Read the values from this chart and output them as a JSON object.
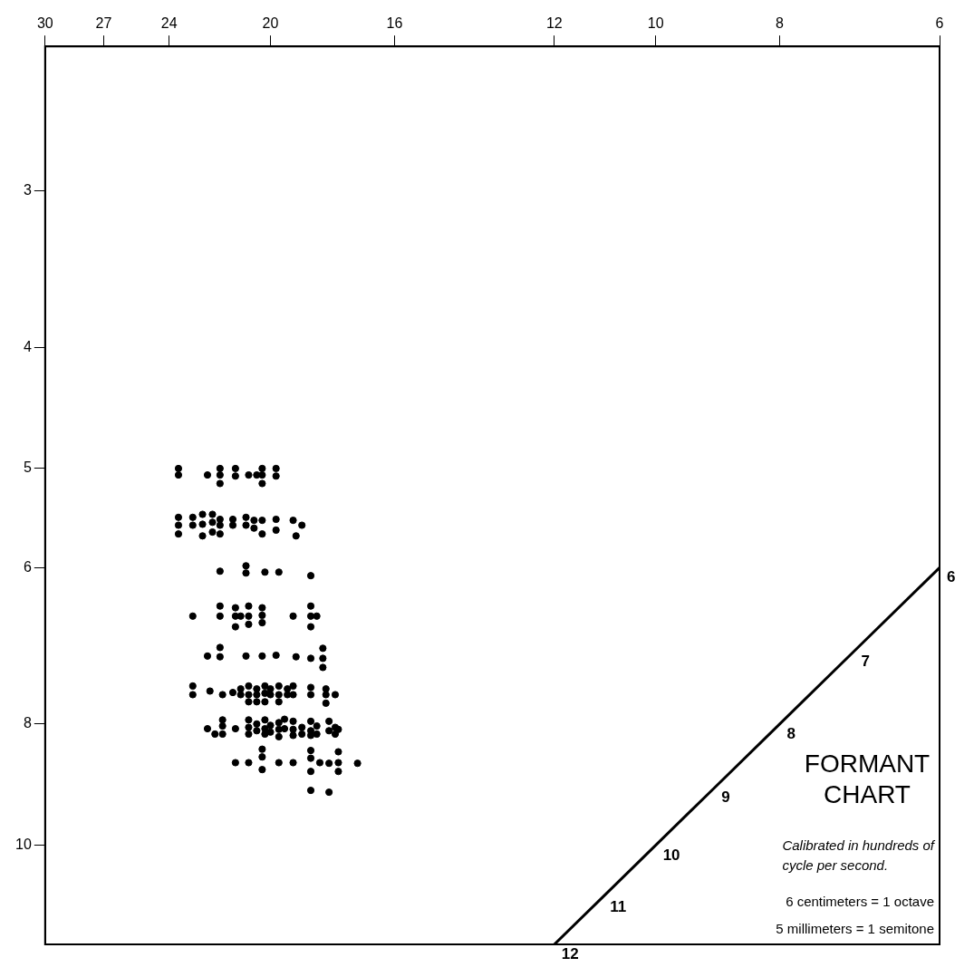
{
  "chart_data": {
    "type": "scatter",
    "title": "FORMANT CHART",
    "annotations": [
      "Calibrated in hundreds of cycle per second.",
      "6 centimeters = 1 octave",
      "5 millimeters = 1 semitone"
    ],
    "xlim": [
      30,
      6
    ],
    "xticks": [
      30,
      27,
      24,
      20,
      16,
      12,
      10,
      8,
      6
    ],
    "ylim": [
      12,
      2.3
    ],
    "yticks": [
      3,
      4,
      5,
      6,
      8,
      10
    ],
    "log": "xy",
    "marker": "circle",
    "legend": false,
    "series": [
      {
        "color": "#000000",
        "x": [
          23.6,
          23.6,
          22.4,
          21.9,
          21.9,
          21.9,
          21.3,
          21.3,
          20.8,
          20.5,
          20.3,
          20.3,
          20.3,
          19.8,
          19.8,
          23.6,
          23.6,
          23.6,
          23.0,
          23.0,
          22.6,
          22.6,
          22.6,
          22.2,
          22.2,
          22.2,
          21.9,
          21.9,
          21.9,
          21.4,
          21.4,
          20.9,
          20.9,
          20.6,
          20.6,
          20.3,
          20.3,
          19.8,
          19.8,
          19.2,
          18.9,
          19.1,
          21.9,
          20.9,
          20.9,
          20.2,
          19.7,
          18.6,
          23.0,
          21.9,
          21.9,
          21.3,
          21.3,
          21.3,
          21.1,
          20.8,
          20.8,
          20.8,
          20.3,
          20.3,
          20.3,
          19.2,
          18.6,
          18.6,
          18.6,
          18.4,
          22.4,
          21.9,
          21.9,
          20.9,
          20.3,
          19.8,
          19.1,
          18.6,
          18.2,
          18.2,
          18.2,
          23.0,
          23.0,
          22.3,
          21.8,
          21.4,
          21.1,
          21.1,
          20.8,
          20.8,
          20.8,
          20.5,
          20.5,
          20.5,
          20.2,
          20.2,
          20.2,
          20.0,
          20.0,
          19.7,
          19.7,
          19.7,
          19.4,
          19.4,
          19.2,
          19.2,
          18.6,
          18.6,
          18.1,
          18.1,
          18.1,
          17.8,
          22.4,
          22.1,
          21.8,
          21.8,
          21.8,
          21.3,
          20.8,
          20.8,
          20.8,
          20.5,
          20.5,
          20.2,
          20.2,
          20.2,
          20.0,
          20.0,
          19.7,
          19.7,
          19.7,
          19.5,
          19.5,
          19.2,
          19.2,
          19.2,
          18.9,
          18.9,
          18.6,
          18.6,
          18.6,
          18.4,
          18.4,
          18.0,
          18.0,
          17.8,
          17.8,
          17.7,
          21.3,
          20.8,
          20.3,
          20.3,
          20.3,
          19.7,
          19.2,
          18.6,
          18.6,
          18.6,
          18.3,
          18.0,
          17.7,
          17.7,
          17.7,
          17.1,
          18.6,
          18.0
        ],
        "values": [
          5.0,
          5.06,
          5.06,
          5.0,
          5.06,
          5.14,
          5.0,
          5.07,
          5.06,
          5.06,
          5.0,
          5.06,
          5.14,
          5.0,
          5.07,
          5.47,
          5.55,
          5.64,
          5.47,
          5.55,
          5.44,
          5.54,
          5.66,
          5.44,
          5.52,
          5.62,
          5.49,
          5.55,
          5.64,
          5.49,
          5.55,
          5.47,
          5.55,
          5.5,
          5.58,
          5.5,
          5.64,
          5.49,
          5.6,
          5.5,
          5.55,
          5.66,
          6.04,
          5.98,
          6.06,
          6.05,
          6.05,
          6.09,
          6.56,
          6.44,
          6.56,
          6.46,
          6.56,
          6.69,
          6.56,
          6.44,
          6.56,
          6.66,
          6.46,
          6.55,
          6.64,
          6.56,
          6.44,
          6.56,
          6.69,
          6.56,
          7.06,
          6.95,
          7.07,
          7.06,
          7.06,
          7.05,
          7.07,
          7.09,
          6.96,
          7.09,
          7.21,
          7.46,
          7.58,
          7.53,
          7.58,
          7.55,
          7.5,
          7.58,
          7.46,
          7.58,
          7.68,
          7.5,
          7.58,
          7.68,
          7.46,
          7.56,
          7.68,
          7.5,
          7.58,
          7.46,
          7.58,
          7.68,
          7.5,
          7.58,
          7.46,
          7.58,
          7.48,
          7.58,
          7.5,
          7.58,
          7.7,
          7.58,
          8.07,
          8.15,
          7.94,
          8.03,
          8.15,
          8.07,
          7.94,
          8.05,
          8.15,
          8.0,
          8.1,
          7.94,
          8.07,
          8.15,
          8.02,
          8.12,
          7.98,
          8.08,
          8.19,
          7.93,
          8.07,
          7.96,
          8.08,
          8.17,
          8.05,
          8.15,
          7.96,
          8.1,
          8.17,
          8.03,
          8.15,
          7.96,
          8.1,
          8.05,
          8.15,
          8.08,
          8.59,
          8.59,
          8.38,
          8.5,
          8.7,
          8.59,
          8.59,
          8.4,
          8.52,
          8.73,
          8.59,
          8.6,
          8.42,
          8.59,
          8.73,
          8.6,
          9.04,
          9.07
        ]
      },
      {
        "type": "line",
        "color": "#000000",
        "marker": "none",
        "x": [
          6,
          7,
          8,
          9,
          10,
          11,
          12
        ],
        "values": [
          6,
          7,
          8,
          9,
          10,
          11,
          12
        ],
        "value_labels": [
          "6",
          "7",
          "8",
          "9",
          "10",
          "11",
          "12"
        ]
      }
    ]
  }
}
